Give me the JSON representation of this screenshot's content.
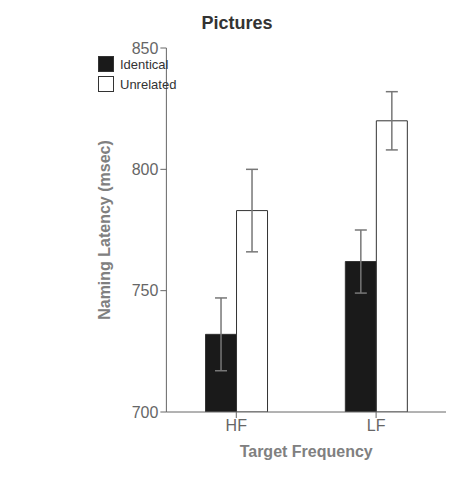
{
  "chart_data": {
    "type": "bar",
    "title": "Pictures",
    "xlabel": "Target Frequency",
    "ylabel": "Naming Latency (msec)",
    "categories": [
      "HF",
      "LF"
    ],
    "series": [
      {
        "name": "Identical",
        "color": "#1a1a1a",
        "values": [
          732,
          762
        ],
        "errors": [
          15,
          13
        ]
      },
      {
        "name": "Unrelated",
        "color": "#ffffff",
        "values": [
          783,
          820
        ],
        "errors": [
          17,
          12
        ]
      }
    ],
    "ylim": [
      700,
      850
    ],
    "yticks": [
      700,
      750,
      800,
      850
    ],
    "grid": false,
    "legend": "upper left"
  }
}
